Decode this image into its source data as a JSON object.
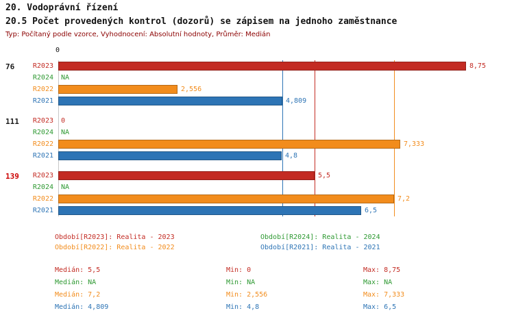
{
  "header": {
    "title": "20. Vodoprávní řízení",
    "subtitle": "20.5 Počet provedených kontrol (dozorů) se zápisem na jednoho zaměstnance",
    "meta": "Typ: Počítaný podle vzorce, Vyhodnocení: Absolutní hodnoty, Průměr: Medián"
  },
  "axis": {
    "zero_label": "0"
  },
  "colors": {
    "series": {
      "R2023": "#C32B23",
      "R2024": "#2E9932",
      "R2022": "#F28C1C",
      "R2021": "#2D74B5"
    },
    "meta_text": "#8B0000",
    "group_id_default": "#1A1A1A",
    "group_id_highlight": "#CC0000",
    "axis_line": "#C8C8C8"
  },
  "chart_data": {
    "type": "bar",
    "orientation": "horizontal",
    "xlim": [
      0,
      9.2
    ],
    "series_order": [
      "R2023",
      "R2024",
      "R2022",
      "R2021"
    ],
    "groups": [
      {
        "id": "76",
        "highlight": false,
        "values": [
          {
            "series": "R2023",
            "value": 8.75,
            "label": "8,75"
          },
          {
            "series": "R2024",
            "value": null,
            "label": "NA"
          },
          {
            "series": "R2022",
            "value": 2.556,
            "label": "2,556"
          },
          {
            "series": "R2021",
            "value": 4.809,
            "label": "4,809"
          }
        ]
      },
      {
        "id": "111",
        "highlight": false,
        "values": [
          {
            "series": "R2023",
            "value": 0,
            "label": "0"
          },
          {
            "series": "R2024",
            "value": null,
            "label": "NA"
          },
          {
            "series": "R2022",
            "value": 7.333,
            "label": "7,333"
          },
          {
            "series": "R2021",
            "value": 4.8,
            "label": "4,8"
          }
        ]
      },
      {
        "id": "139",
        "highlight": true,
        "values": [
          {
            "series": "R2023",
            "value": 5.5,
            "label": "5,5"
          },
          {
            "series": "R2024",
            "value": null,
            "label": "NA"
          },
          {
            "series": "R2022",
            "value": 7.2,
            "label": "7,2"
          },
          {
            "series": "R2021",
            "value": 6.5,
            "label": "6,5"
          }
        ]
      }
    ],
    "median_lines": [
      {
        "series": "R2021",
        "value": 4.809
      },
      {
        "series": "R2023",
        "value": 5.5
      },
      {
        "series": "R2022",
        "value": 7.2
      }
    ]
  },
  "legend": {
    "items": [
      {
        "series": "R2023",
        "label": "Období[R2023]: Realita - 2023"
      },
      {
        "series": "R2024",
        "label": "Období[R2024]: Realita - 2024"
      },
      {
        "series": "R2022",
        "label": "Období[R2022]: Realita - 2022"
      },
      {
        "series": "R2021",
        "label": "Období[R2021]: Realita - 2021"
      }
    ]
  },
  "stats": {
    "rows": [
      {
        "series": "R2023",
        "median": "Medián: 5,5",
        "min": "Min: 0",
        "max": "Max: 8,75"
      },
      {
        "series": "R2024",
        "median": "Medián: NA",
        "min": "Min: NA",
        "max": "Max: NA"
      },
      {
        "series": "R2022",
        "median": "Medián: 7,2",
        "min": "Min: 2,556",
        "max": "Max: 7,333"
      },
      {
        "series": "R2021",
        "median": "Medián: 4,809",
        "min": "Min: 4,8",
        "max": "Max: 6,5"
      }
    ]
  }
}
